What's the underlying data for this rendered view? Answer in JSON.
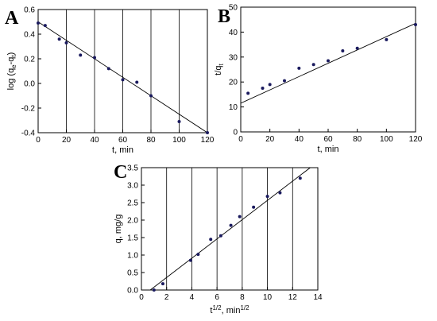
{
  "chart_data": [
    {
      "panel": "A",
      "type": "scatter",
      "xlabel": "t, min",
      "ylabel": "log (qe-qt)",
      "ylabel_parts": {
        "base": "log (q",
        "sub1": "e",
        "mid": "-q",
        "sub2": "t",
        "end": ")"
      },
      "xlim": [
        0,
        120
      ],
      "ylim": [
        -0.4,
        0.6
      ],
      "xticks": [
        "0",
        "20",
        "40",
        "60",
        "80",
        "100",
        "120"
      ],
      "yticks": [
        "-0.4",
        "-0.2",
        "0.0",
        "0.2",
        "0.4",
        "0.6"
      ],
      "grid": "vertical",
      "x": [
        0,
        5,
        15,
        20,
        30,
        40,
        50,
        60,
        70,
        80,
        100,
        120
      ],
      "y": [
        0.49,
        0.47,
        0.36,
        0.33,
        0.23,
        0.21,
        0.12,
        0.03,
        0.01,
        -0.1,
        -0.31,
        -0.4
      ],
      "fit": {
        "x": [
          0,
          120
        ],
        "y": [
          0.5,
          -0.4
        ]
      }
    },
    {
      "panel": "B",
      "type": "scatter",
      "xlabel": "t, min",
      "ylabel": "t/qt",
      "ylabel_parts": {
        "base": "t/q",
        "sub": "t"
      },
      "xlim": [
        0,
        120
      ],
      "ylim": [
        0,
        50
      ],
      "xticks": [
        "0",
        "20",
        "40",
        "60",
        "80",
        "100",
        "120"
      ],
      "yticks": [
        "0",
        "10",
        "20",
        "30",
        "40",
        "50"
      ],
      "grid": "none",
      "x": [
        5,
        15,
        20,
        30,
        40,
        50,
        60,
        70,
        80,
        100,
        120
      ],
      "y": [
        15.5,
        17.5,
        19.0,
        20.5,
        25.5,
        27.0,
        28.5,
        32.5,
        33.5,
        37.0,
        43.0
      ],
      "fit": {
        "x": [
          0,
          120
        ],
        "y": [
          11.5,
          43.5
        ]
      }
    },
    {
      "panel": "C",
      "type": "scatter",
      "xlabel": "t1/2, min1/2",
      "xlabel_parts": {
        "t": "t",
        "sup1": "1/2",
        "mid": ", min",
        "sup2": "1/2"
      },
      "ylabel": "q, mg/g",
      "xlim": [
        0,
        14
      ],
      "ylim": [
        0,
        3.5
      ],
      "xticks": [
        "0",
        "2",
        "4",
        "6",
        "8",
        "10",
        "12",
        "14"
      ],
      "yticks": [
        "0.0",
        "0.5",
        "1.0",
        "1.5",
        "2.0",
        "2.5",
        "3.0",
        "3.5"
      ],
      "grid": "vertical",
      "x": [
        1.0,
        1.7,
        3.9,
        4.5,
        5.5,
        6.3,
        7.1,
        7.8,
        8.9,
        10.0,
        11.0,
        12.6
      ],
      "y": [
        0.0,
        0.18,
        0.85,
        1.02,
        1.45,
        1.55,
        1.85,
        2.1,
        2.37,
        2.68,
        2.78,
        3.2
      ],
      "fit": {
        "x": [
          0.7,
          13.4
        ],
        "y": [
          0,
          3.5
        ]
      }
    }
  ]
}
